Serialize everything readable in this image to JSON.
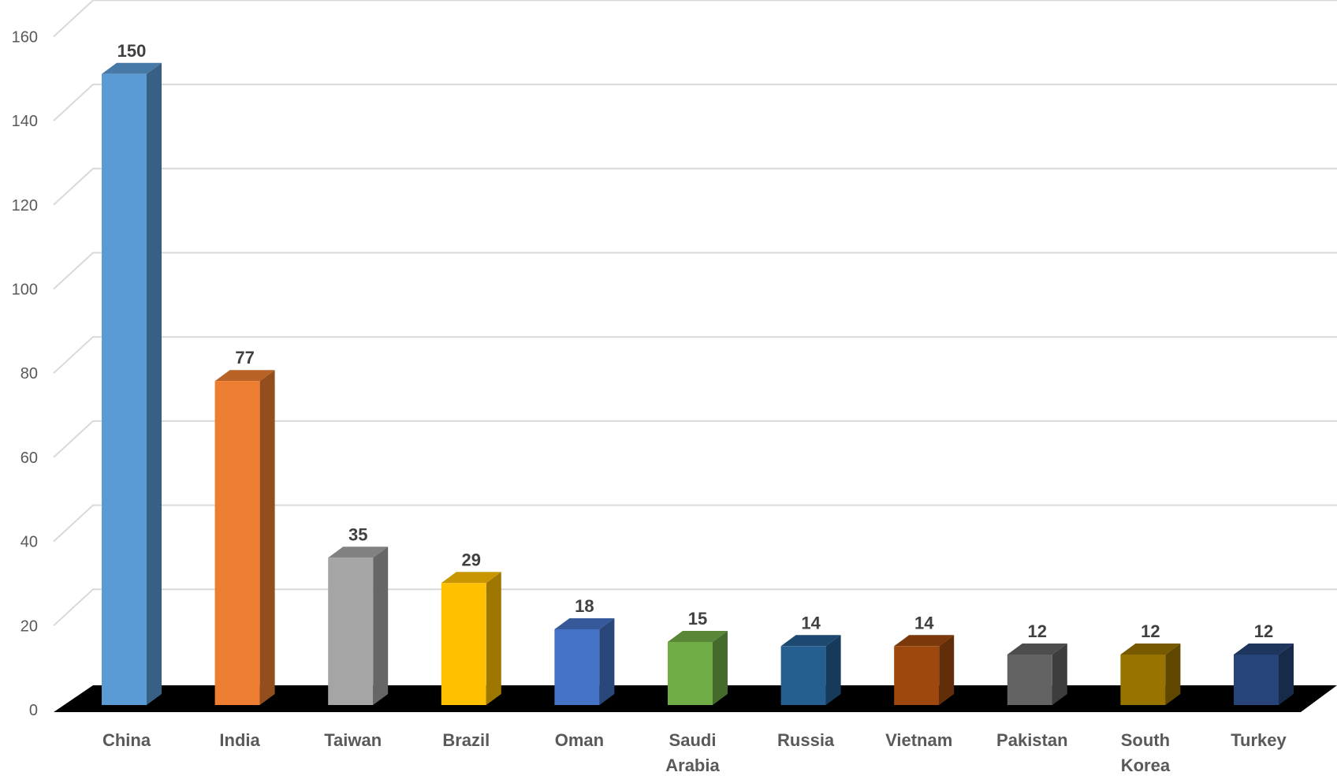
{
  "chart_data": {
    "type": "bar",
    "title": "",
    "xlabel": "",
    "ylabel": "",
    "ylim": [
      0,
      160
    ],
    "yticks": [
      0,
      20,
      40,
      60,
      80,
      100,
      120,
      140,
      160
    ],
    "grid": true,
    "legend": "none",
    "categories": [
      [
        "China"
      ],
      [
        "India"
      ],
      [
        "Taiwan"
      ],
      [
        "Brazil"
      ],
      [
        "Oman"
      ],
      [
        "Saudi",
        "Arabia"
      ],
      [
        "Russia"
      ],
      [
        "Vietnam"
      ],
      [
        "Pakistan"
      ],
      [
        "South",
        "Korea"
      ],
      [
        "Turkey"
      ]
    ],
    "values": [
      150,
      77,
      35,
      29,
      18,
      15,
      14,
      14,
      12,
      12,
      12
    ],
    "data_labels": [
      "150",
      "77",
      "35",
      "29",
      "18",
      "15",
      "14",
      "14",
      "12",
      "12",
      "12"
    ],
    "bar_colors": [
      "#5b9bd5",
      "#ed7d31",
      "#a5a5a5",
      "#ffc000",
      "#4472c4",
      "#70ad47",
      "#255e91",
      "#9e480e",
      "#636363",
      "#997300",
      "#264478"
    ],
    "floor_color": "#000000",
    "grid_color": "#d9d9d9"
  }
}
